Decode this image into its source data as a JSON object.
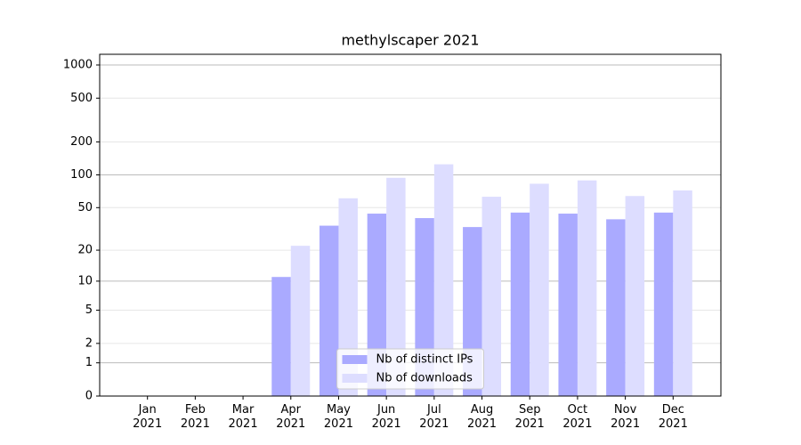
{
  "chart_data": {
    "type": "bar",
    "title": "methylscaper 2021",
    "categories": [
      "Jan 2021",
      "Feb 2021",
      "Mar 2021",
      "Apr 2021",
      "May 2021",
      "Jun 2021",
      "Jul 2021",
      "Aug 2021",
      "Sep 2021",
      "Oct 2021",
      "Nov 2021",
      "Dec 2021"
    ],
    "series": [
      {
        "name": "Nb of distinct IPs",
        "color": "#aaaaff",
        "values": [
          0,
          0,
          0,
          11,
          34,
          44,
          40,
          33,
          45,
          44,
          39,
          45
        ]
      },
      {
        "name": "Nb of downloads",
        "color": "#ddddff",
        "values": [
          0,
          0,
          0,
          22,
          61,
          94,
          125,
          63,
          83,
          89,
          64,
          72
        ]
      }
    ],
    "yscale": "log1p",
    "ylim": [
      0,
      1250
    ],
    "yticks": [
      0,
      1,
      2,
      5,
      10,
      20,
      50,
      100,
      200,
      500,
      1000
    ],
    "grid": true,
    "legend": "lower center"
  }
}
